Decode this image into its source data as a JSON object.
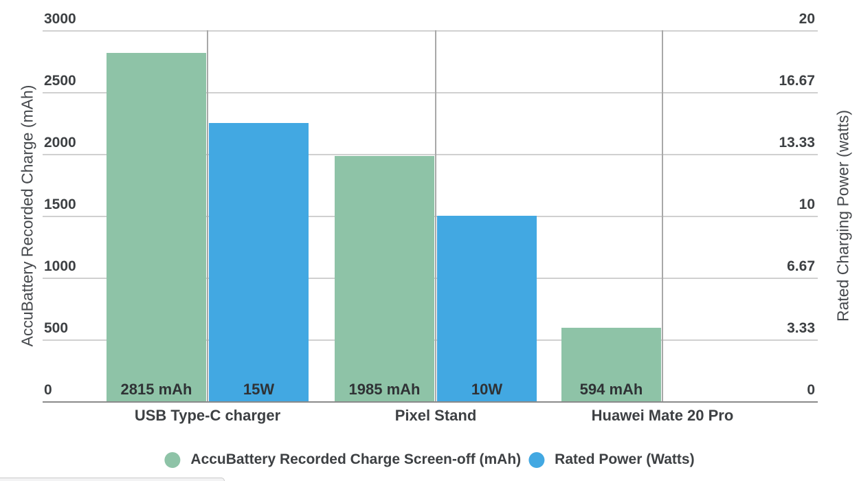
{
  "chart_data": {
    "type": "bar",
    "title": "",
    "categories": [
      "USB Type-C charger",
      "Pixel Stand",
      "Huawei Mate 20 Pro"
    ],
    "series": [
      {
        "name": "AccuBattery Recorded Charge Screen-off (mAh)",
        "axis": "left",
        "color": "#8ec3a7",
        "values": [
          2815,
          1985,
          594
        ],
        "bar_labels": [
          "2815 mAh",
          "1985 mAh",
          "594 mAh"
        ]
      },
      {
        "name": "Rated Power (Watts)",
        "axis": "right",
        "color": "#42a8e2",
        "values": [
          15,
          10,
          null
        ],
        "bar_labels": [
          "15W",
          "10W",
          null
        ]
      }
    ],
    "left_axis": {
      "title": "AccuBattery Recorded Charge (mAh)",
      "min": 0,
      "max": 3000,
      "ticks": [
        "0",
        "500",
        "1000",
        "1500",
        "2000",
        "2500",
        "3000"
      ]
    },
    "right_axis": {
      "title": "Rated Charging Power (watts)",
      "min": 0,
      "max": 20,
      "ticks": [
        "0",
        "3.33",
        "6.67",
        "10",
        "13.33",
        "16.67",
        "20"
      ]
    },
    "grid": true,
    "legend_position": "bottom"
  },
  "colors": {
    "background": "#ffffff",
    "gridline": "#d0d0d0",
    "vertical_gridline": "#a8a8a8",
    "axis_line": "#8a8a8a",
    "text": "#3d4043",
    "series_green": "#8ec3a7",
    "series_blue": "#42a8e2"
  }
}
